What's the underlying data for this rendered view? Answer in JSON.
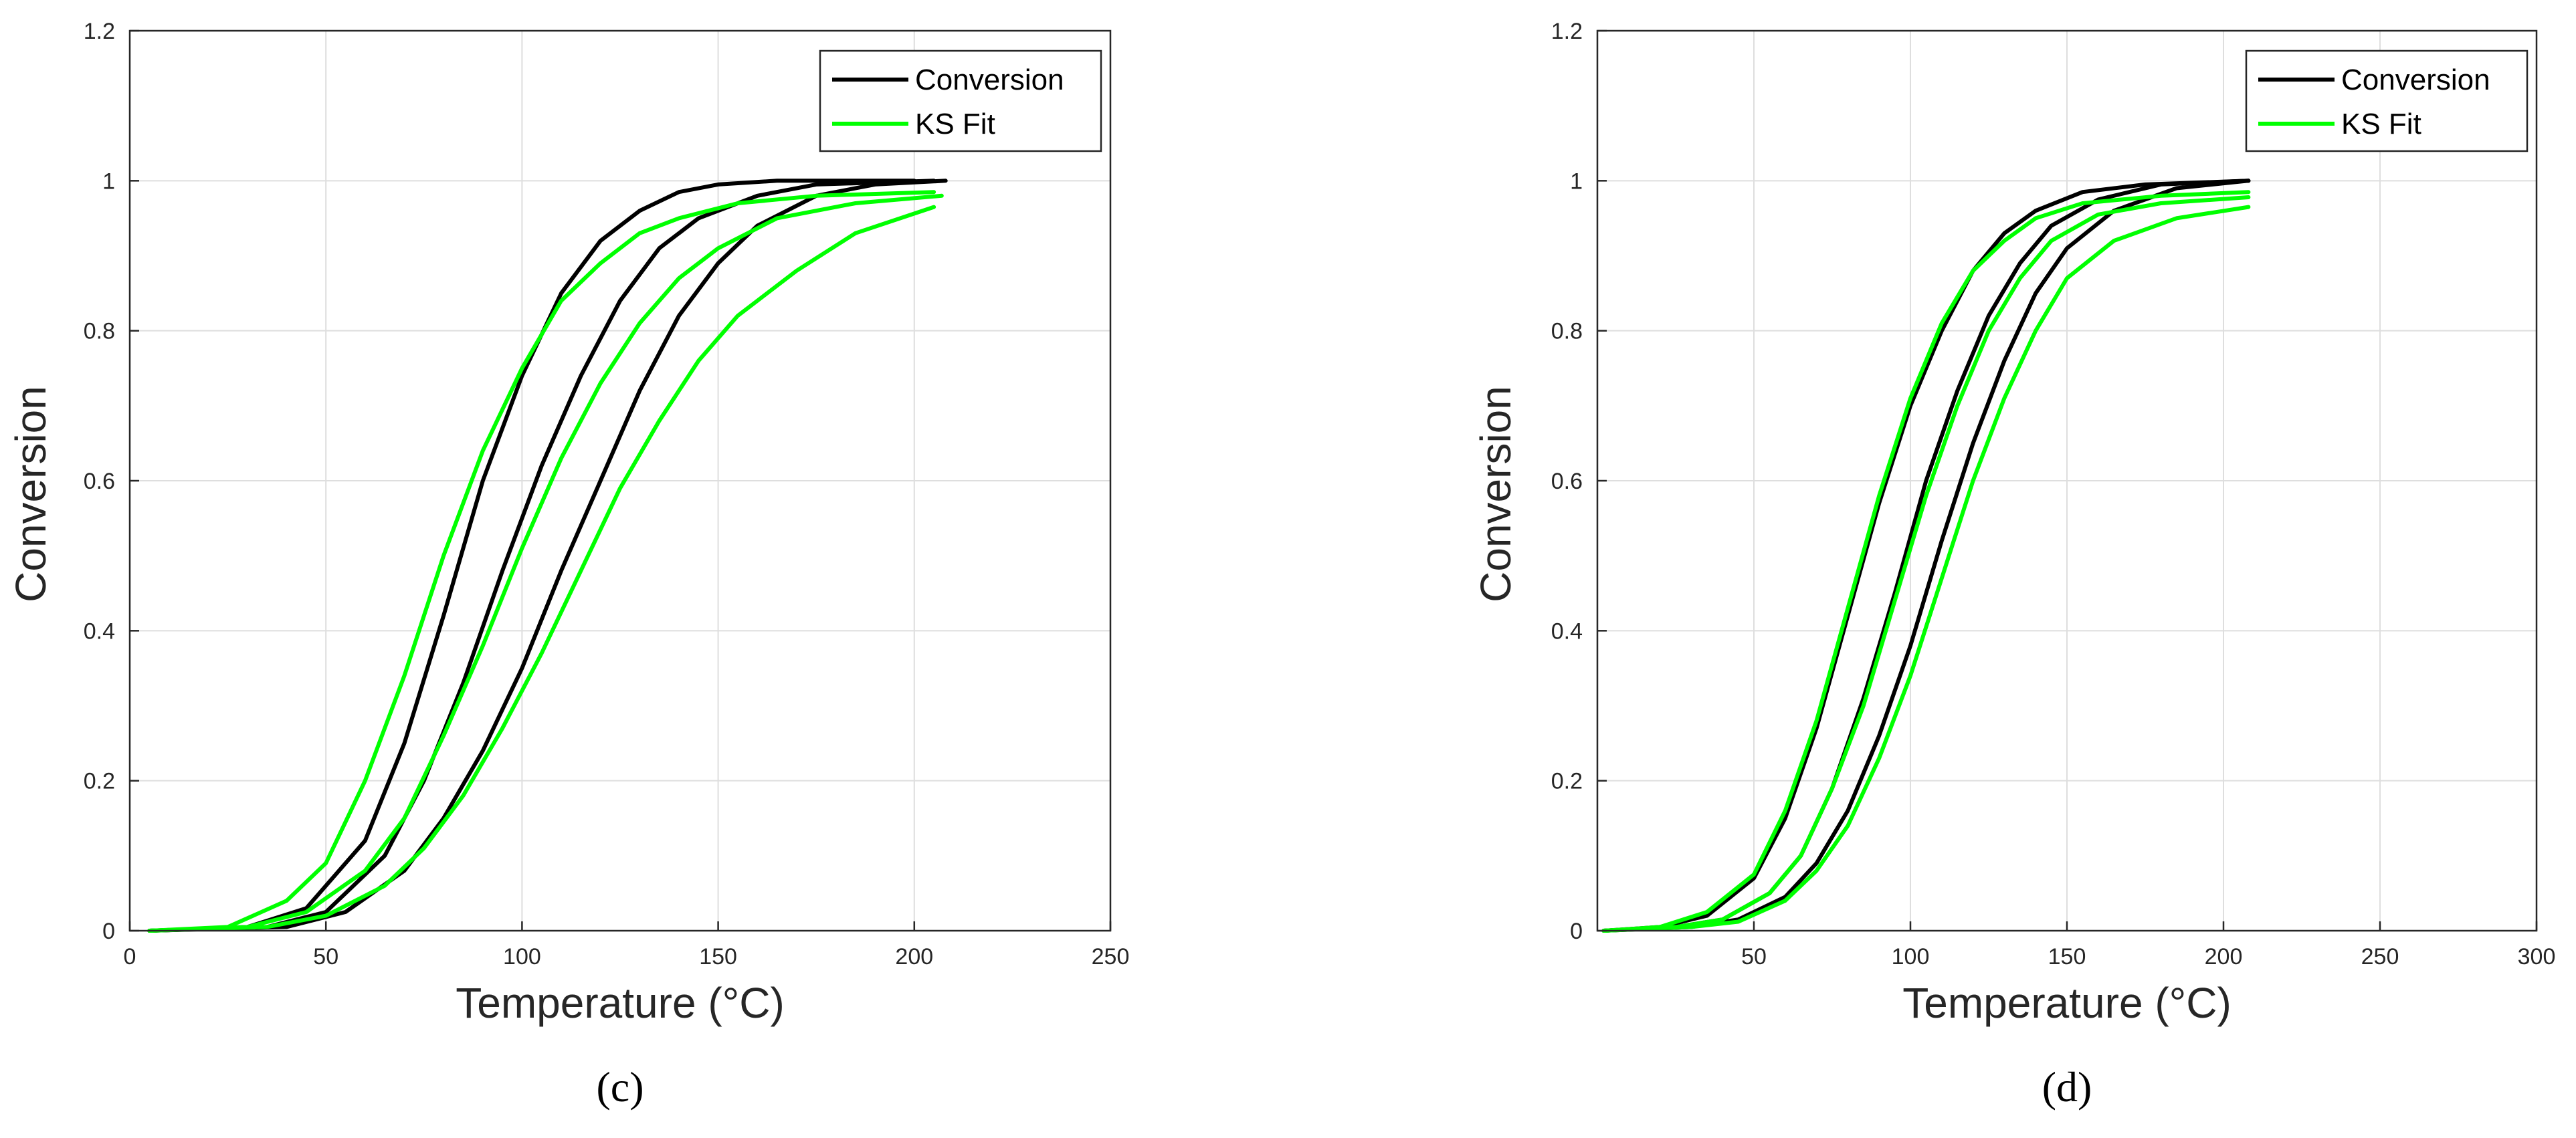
{
  "chart_data": [
    {
      "type": "line",
      "panel_label": "(c)",
      "xlabel": "Temperature (°C)",
      "ylabel": "Conversion",
      "xlim": [
        0,
        250
      ],
      "ylim": [
        0,
        1.2
      ],
      "xticks": [
        0,
        50,
        100,
        150,
        200,
        250
      ],
      "yticks": [
        0,
        0.2,
        0.4,
        0.6,
        0.8,
        1,
        1.2
      ],
      "xtick_labels": [
        "0",
        "50",
        "100",
        "150",
        "200",
        "250"
      ],
      "ytick_labels": [
        "0",
        "0.2",
        "0.4",
        "0.6",
        "0.8",
        "1",
        "1.2"
      ],
      "grid": true,
      "legend": {
        "position": "top-right",
        "entries": [
          "Conversion",
          "KS Fit"
        ]
      },
      "series": [
        {
          "name": "Conversion",
          "color": "#000000",
          "points": [
            [
              5,
              0
            ],
            [
              30,
              0.005
            ],
            [
              45,
              0.03
            ],
            [
              60,
              0.12
            ],
            [
              70,
              0.25
            ],
            [
              80,
              0.42
            ],
            [
              90,
              0.6
            ],
            [
              100,
              0.74
            ],
            [
              110,
              0.85
            ],
            [
              120,
              0.92
            ],
            [
              130,
              0.96
            ],
            [
              140,
              0.985
            ],
            [
              150,
              0.995
            ],
            [
              165,
              1
            ],
            [
              200,
              1
            ]
          ]
        },
        {
          "name": "Conversion",
          "color": "#000000",
          "points": [
            [
              5,
              0
            ],
            [
              35,
              0.005
            ],
            [
              50,
              0.025
            ],
            [
              65,
              0.1
            ],
            [
              75,
              0.2
            ],
            [
              85,
              0.33
            ],
            [
              95,
              0.48
            ],
            [
              105,
              0.62
            ],
            [
              115,
              0.74
            ],
            [
              125,
              0.84
            ],
            [
              135,
              0.91
            ],
            [
              145,
              0.95
            ],
            [
              160,
              0.98
            ],
            [
              175,
              0.995
            ],
            [
              205,
              1
            ]
          ]
        },
        {
          "name": "Conversion",
          "color": "#000000",
          "points": [
            [
              5,
              0
            ],
            [
              40,
              0.005
            ],
            [
              55,
              0.025
            ],
            [
              70,
              0.08
            ],
            [
              80,
              0.15
            ],
            [
              90,
              0.24
            ],
            [
              100,
              0.35
            ],
            [
              110,
              0.48
            ],
            [
              120,
              0.6
            ],
            [
              130,
              0.72
            ],
            [
              140,
              0.82
            ],
            [
              150,
              0.89
            ],
            [
              160,
              0.94
            ],
            [
              175,
              0.98
            ],
            [
              190,
              0.995
            ],
            [
              208,
              1
            ]
          ]
        },
        {
          "name": "KS Fit",
          "color": "#00ff00",
          "points": [
            [
              5,
              0
            ],
            [
              25,
              0.005
            ],
            [
              40,
              0.04
            ],
            [
              50,
              0.09
            ],
            [
              60,
              0.2
            ],
            [
              70,
              0.34
            ],
            [
              80,
              0.5
            ],
            [
              90,
              0.64
            ],
            [
              100,
              0.75
            ],
            [
              110,
              0.84
            ],
            [
              120,
              0.89
            ],
            [
              130,
              0.93
            ],
            [
              140,
              0.95
            ],
            [
              155,
              0.97
            ],
            [
              175,
              0.98
            ],
            [
              205,
              0.985
            ]
          ]
        },
        {
          "name": "KS Fit",
          "color": "#00ff00",
          "points": [
            [
              5,
              0
            ],
            [
              30,
              0.005
            ],
            [
              45,
              0.025
            ],
            [
              60,
              0.08
            ],
            [
              70,
              0.15
            ],
            [
              80,
              0.26
            ],
            [
              90,
              0.38
            ],
            [
              100,
              0.51
            ],
            [
              110,
              0.63
            ],
            [
              120,
              0.73
            ],
            [
              130,
              0.81
            ],
            [
              140,
              0.87
            ],
            [
              150,
              0.91
            ],
            [
              165,
              0.95
            ],
            [
              185,
              0.97
            ],
            [
              207,
              0.98
            ]
          ]
        },
        {
          "name": "KS Fit",
          "color": "#00ff00",
          "points": [
            [
              5,
              0
            ],
            [
              35,
              0.005
            ],
            [
              50,
              0.02
            ],
            [
              65,
              0.06
            ],
            [
              75,
              0.11
            ],
            [
              85,
              0.18
            ],
            [
              95,
              0.27
            ],
            [
              105,
              0.37
            ],
            [
              115,
              0.48
            ],
            [
              125,
              0.59
            ],
            [
              135,
              0.68
            ],
            [
              145,
              0.76
            ],
            [
              155,
              0.82
            ],
            [
              170,
              0.88
            ],
            [
              185,
              0.93
            ],
            [
              205,
              0.965
            ]
          ]
        }
      ]
    },
    {
      "type": "line",
      "panel_label": "(d)",
      "xlabel": "Temperature (°C)",
      "ylabel": "Conversion",
      "xlim": [
        0,
        300
      ],
      "ylim": [
        0,
        1.2
      ],
      "xticks": [
        50,
        100,
        150,
        200,
        250,
        300
      ],
      "yticks": [
        0,
        0.2,
        0.4,
        0.6,
        0.8,
        1,
        1.2
      ],
      "xtick_labels": [
        "50",
        "100",
        "150",
        "200",
        "250",
        "300"
      ],
      "ytick_labels": [
        "0",
        "0.2",
        "0.4",
        "0.6",
        "0.8",
        "1",
        "1.2"
      ],
      "grid": true,
      "legend": {
        "position": "top-right",
        "entries": [
          "Conversion",
          "KS Fit"
        ]
      },
      "series": [
        {
          "name": "Conversion",
          "color": "#000000",
          "points": [
            [
              2,
              0
            ],
            [
              20,
              0.005
            ],
            [
              35,
              0.02
            ],
            [
              50,
              0.07
            ],
            [
              60,
              0.15
            ],
            [
              70,
              0.27
            ],
            [
              80,
              0.42
            ],
            [
              90,
              0.57
            ],
            [
              100,
              0.7
            ],
            [
              110,
              0.8
            ],
            [
              120,
              0.88
            ],
            [
              130,
              0.93
            ],
            [
              140,
              0.96
            ],
            [
              155,
              0.985
            ],
            [
              175,
              0.995
            ],
            [
              208,
              1
            ]
          ]
        },
        {
          "name": "Conversion",
          "color": "#000000",
          "points": [
            [
              2,
              0
            ],
            [
              25,
              0.005
            ],
            [
              40,
              0.015
            ],
            [
              55,
              0.05
            ],
            [
              65,
              0.1
            ],
            [
              75,
              0.19
            ],
            [
              85,
              0.31
            ],
            [
              95,
              0.45
            ],
            [
              105,
              0.6
            ],
            [
              115,
              0.72
            ],
            [
              125,
              0.82
            ],
            [
              135,
              0.89
            ],
            [
              145,
              0.94
            ],
            [
              160,
              0.975
            ],
            [
              180,
              0.995
            ],
            [
              208,
              1
            ]
          ]
        },
        {
          "name": "Conversion",
          "color": "#000000",
          "points": [
            [
              2,
              0
            ],
            [
              30,
              0.005
            ],
            [
              45,
              0.015
            ],
            [
              60,
              0.045
            ],
            [
              70,
              0.09
            ],
            [
              80,
              0.16
            ],
            [
              90,
              0.26
            ],
            [
              100,
              0.38
            ],
            [
              110,
              0.52
            ],
            [
              120,
              0.65
            ],
            [
              130,
              0.76
            ],
            [
              140,
              0.85
            ],
            [
              150,
              0.91
            ],
            [
              165,
              0.96
            ],
            [
              185,
              0.99
            ],
            [
              208,
              1
            ]
          ]
        },
        {
          "name": "KS Fit",
          "color": "#00ff00",
          "points": [
            [
              2,
              0
            ],
            [
              20,
              0.005
            ],
            [
              35,
              0.025
            ],
            [
              50,
              0.075
            ],
            [
              60,
              0.16
            ],
            [
              70,
              0.28
            ],
            [
              80,
              0.43
            ],
            [
              90,
              0.58
            ],
            [
              100,
              0.71
            ],
            [
              110,
              0.81
            ],
            [
              120,
              0.88
            ],
            [
              130,
              0.92
            ],
            [
              140,
              0.95
            ],
            [
              155,
              0.97
            ],
            [
              180,
              0.98
            ],
            [
              208,
              0.985
            ]
          ]
        },
        {
          "name": "KS Fit",
          "color": "#00ff00",
          "points": [
            [
              2,
              0
            ],
            [
              25,
              0.005
            ],
            [
              40,
              0.015
            ],
            [
              55,
              0.05
            ],
            [
              65,
              0.1
            ],
            [
              75,
              0.19
            ],
            [
              85,
              0.3
            ],
            [
              95,
              0.44
            ],
            [
              105,
              0.58
            ],
            [
              115,
              0.7
            ],
            [
              125,
              0.8
            ],
            [
              135,
              0.87
            ],
            [
              145,
              0.92
            ],
            [
              160,
              0.955
            ],
            [
              180,
              0.97
            ],
            [
              208,
              0.978
            ]
          ]
        },
        {
          "name": "KS Fit",
          "color": "#00ff00",
          "points": [
            [
              2,
              0
            ],
            [
              30,
              0.005
            ],
            [
              45,
              0.012
            ],
            [
              60,
              0.04
            ],
            [
              70,
              0.08
            ],
            [
              80,
              0.14
            ],
            [
              90,
              0.23
            ],
            [
              100,
              0.34
            ],
            [
              110,
              0.47
            ],
            [
              120,
              0.6
            ],
            [
              130,
              0.71
            ],
            [
              140,
              0.8
            ],
            [
              150,
              0.87
            ],
            [
              165,
              0.92
            ],
            [
              185,
              0.95
            ],
            [
              208,
              0.965
            ]
          ]
        }
      ]
    }
  ]
}
